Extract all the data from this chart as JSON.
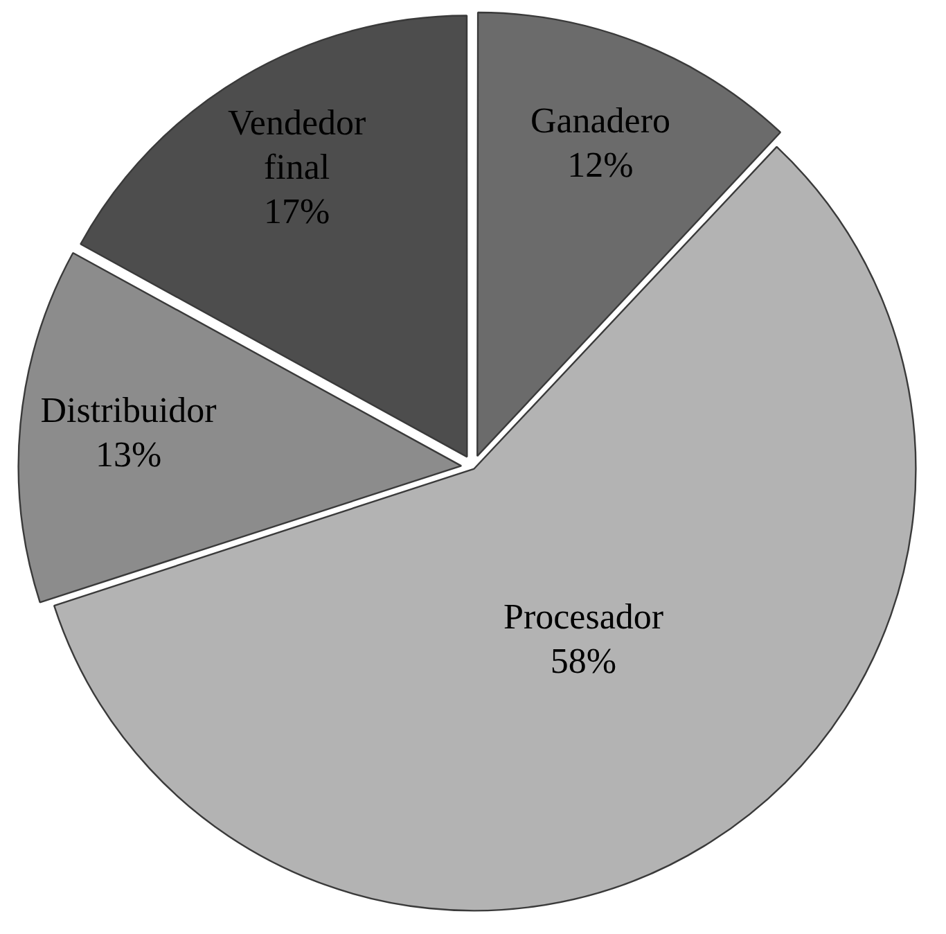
{
  "chart_data": {
    "type": "pie",
    "categories": [
      "Ganadero",
      "Procesador",
      "Distribuidor",
      "Vendedor final"
    ],
    "values": [
      12,
      58,
      13,
      17
    ],
    "value_labels": [
      "12%",
      "58%",
      "13%",
      "17%"
    ],
    "colors": [
      "#6b6b6b",
      "#b3b3b3",
      "#8c8c8c",
      "#4d4d4d"
    ],
    "legend": false
  }
}
